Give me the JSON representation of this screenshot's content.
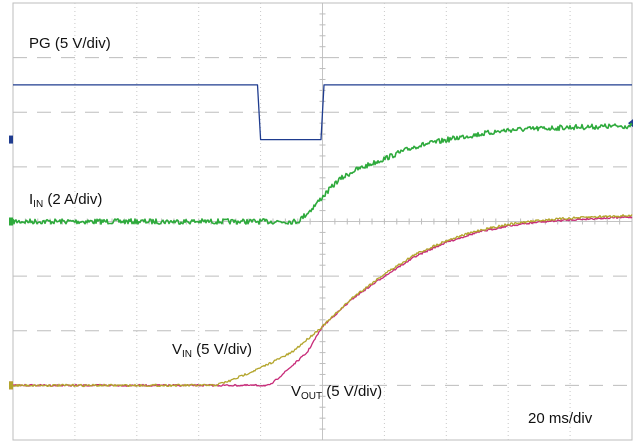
{
  "chart_data": {
    "type": "line",
    "grid": true,
    "time_scale": "20 ms/div",
    "x_unit": "ms",
    "x_range": [
      -100,
      100
    ],
    "divisions": {
      "x": 10,
      "y": 8
    },
    "series": [
      {
        "name": "PG",
        "label_main": "PG",
        "label_sub": "",
        "label_suffix": " (5 V/div)",
        "scale": "5 V/div",
        "color": "#1f3c8f",
        "offset_div": 1.5,
        "unit": "V",
        "points": [
          [
            -100,
            5.0
          ],
          [
            -21,
            5.0
          ],
          [
            -20,
            0.0
          ],
          [
            -0.5,
            0.0
          ],
          [
            0.5,
            5.0
          ],
          [
            100,
            5.0
          ]
        ]
      },
      {
        "name": "IIN",
        "label_main": "I",
        "label_sub": "IN",
        "label_suffix": " (2 A/div)",
        "scale": "2 A/div",
        "color": "#2eaa3c",
        "offset_div": 0.0,
        "unit": "A",
        "points": [
          [
            -100,
            0.0
          ],
          [
            -8,
            0.0
          ],
          [
            -4,
            0.4
          ],
          [
            0,
            0.9
          ],
          [
            5,
            1.5
          ],
          [
            10,
            1.85
          ],
          [
            20,
            2.3
          ],
          [
            30,
            2.75
          ],
          [
            45,
            3.1
          ],
          [
            60,
            3.35
          ],
          [
            80,
            3.45
          ],
          [
            100,
            3.5
          ]
        ]
      },
      {
        "name": "VIN",
        "label_main": "V",
        "label_sub": "IN",
        "label_suffix": " (5 V/div)",
        "scale": "5 V/div",
        "color": "#b3a52c",
        "offset_div": -3.0,
        "unit": "V",
        "points": [
          [
            -100,
            0.0
          ],
          [
            -35,
            0.0
          ],
          [
            -30,
            0.4
          ],
          [
            -20,
            1.6
          ],
          [
            -10,
            3.0
          ],
          [
            0,
            5.4
          ],
          [
            10,
            8.1
          ],
          [
            20,
            10.2
          ],
          [
            30,
            12.0
          ],
          [
            40,
            13.25
          ],
          [
            50,
            14.15
          ],
          [
            60,
            14.75
          ],
          [
            70,
            15.1
          ],
          [
            80,
            15.3
          ],
          [
            90,
            15.45
          ],
          [
            100,
            15.55
          ]
        ]
      },
      {
        "name": "VOUT",
        "label_main": "V",
        "label_sub": "OUT",
        "label_suffix": " (5 V/div)",
        "scale": "5 V/div",
        "color": "#c72a78",
        "offset_div": -3.0,
        "unit": "V",
        "points": [
          [
            -100,
            0.0
          ],
          [
            -17,
            0.0
          ],
          [
            -5,
            3.0
          ],
          [
            0,
            5.4
          ],
          [
            10,
            8.0
          ],
          [
            20,
            10.0
          ],
          [
            30,
            11.8
          ],
          [
            40,
            13.1
          ],
          [
            50,
            14.0
          ],
          [
            60,
            14.6
          ],
          [
            70,
            14.95
          ],
          [
            80,
            15.15
          ],
          [
            90,
            15.3
          ],
          [
            100,
            15.4
          ]
        ]
      }
    ]
  }
}
